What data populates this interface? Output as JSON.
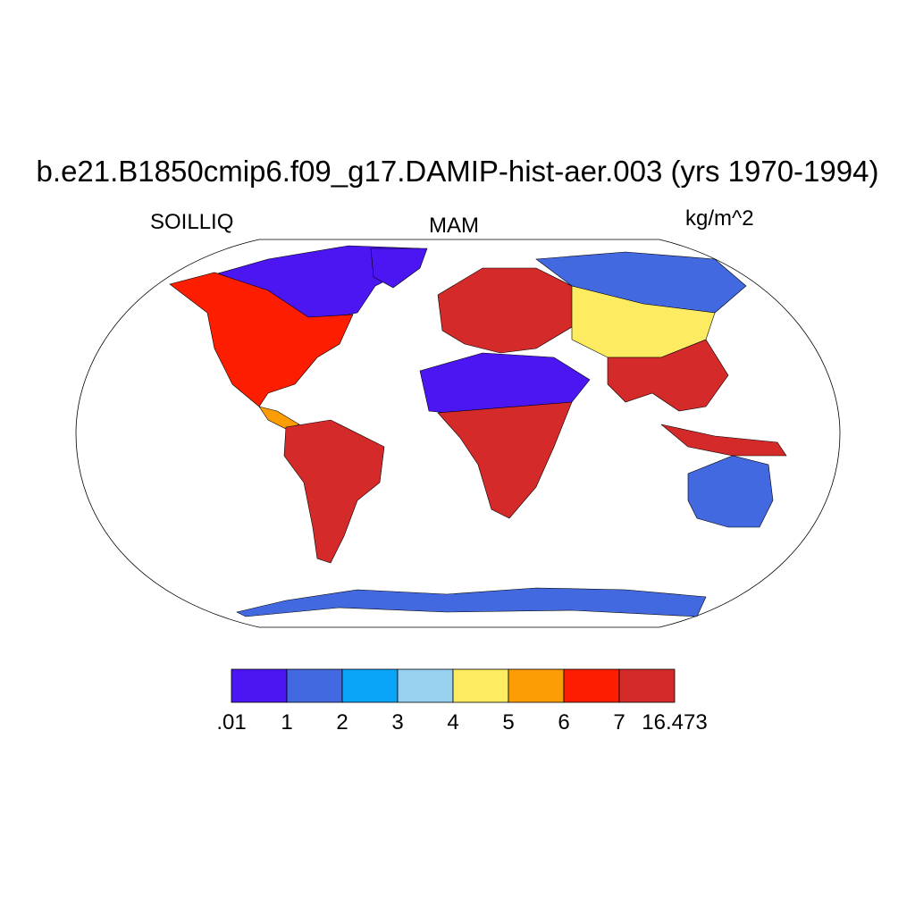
{
  "title": "b.e21.B1850cmip6.f09_g17.DAMIP-hist-aer.003 (yrs 1970-1994)",
  "left_label": "SOILLIQ",
  "center_label": "MAM",
  "right_label": "kg/m^2",
  "colorbar": {
    "colors": [
      "#4b16f2",
      "#4369e0",
      "#0aa5f8",
      "#98d0f0",
      "#fdec62",
      "#fd9d06",
      "#fd1e02",
      "#d42a2a"
    ],
    "labels": [
      ".01",
      "1",
      "2",
      "3",
      "4",
      "5",
      "6",
      "7",
      "16.473"
    ]
  },
  "map": {
    "projection": "Robinson",
    "land_fill": {
      "north_america_west": "#fd1e02",
      "north_america_arctic": "#4b16f2",
      "greenland_coast": "#4b16f2",
      "south_america": "#d42a2a",
      "sahara": "#4b16f2",
      "central_africa": "#d42a2a",
      "europe": "#d42a2a",
      "siberia": "#4369e0",
      "asia_mid": "#fdec62",
      "south_asia": "#d42a2a",
      "australia": "#4369e0",
      "antarctica_coast": "#4369e0"
    }
  }
}
